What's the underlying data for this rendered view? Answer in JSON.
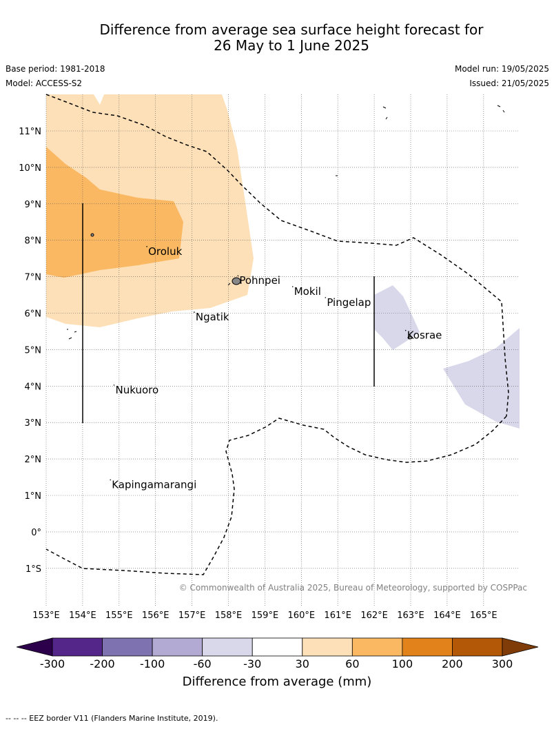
{
  "title_line1": "Difference from average sea surface height forecast for",
  "title_line2": "26 May to 1 June 2025",
  "base_period": "Base period: 1981-2018",
  "model": "Model: ACCESS-S2",
  "model_run": "Model run: 19/05/2025",
  "issued": "Issued: 21/05/2025",
  "copyright": "© Commonwealth of Australia 2025, Bureau of Meteorology, supported by COSPPac",
  "lat_labels": [
    "11°N",
    "10°N",
    "9°N",
    "8°N",
    "7°N",
    "6°N",
    "5°N",
    "4°N",
    "3°N",
    "2°N",
    "1°N",
    "0°",
    "1°S"
  ],
  "lon_labels": [
    "153°E",
    "154°E",
    "155°E",
    "156°E",
    "157°E",
    "158°E",
    "159°E",
    "160°E",
    "161°E",
    "162°E",
    "163°E",
    "164°E",
    "165°E"
  ],
  "places": [
    {
      "name": "Oroluk",
      "lon": 155.8,
      "lat": 7.6
    },
    {
      "name": "Pohnpei",
      "lon": 158.3,
      "lat": 6.8
    },
    {
      "name": "Mokil",
      "lon": 159.8,
      "lat": 6.5
    },
    {
      "name": "Pingelap",
      "lon": 160.7,
      "lat": 6.2
    },
    {
      "name": "Ngatik",
      "lon": 157.1,
      "lat": 5.8
    },
    {
      "name": "Kosrae",
      "lon": 162.9,
      "lat": 5.3
    },
    {
      "name": "Nukuoro",
      "lon": 154.9,
      "lat": 3.8
    },
    {
      "name": "Kapingamarangi",
      "lon": 154.8,
      "lat": 1.2
    }
  ],
  "colorbar": {
    "ticks": [
      "-300",
      "-200",
      "-100",
      "-60",
      "-30",
      "30",
      "60",
      "100",
      "200",
      "300"
    ],
    "colors": [
      "#55268a",
      "#7f72b0",
      "#b2aad2",
      "#d8d8ea",
      "#ffffff",
      "#fde0b7",
      "#fbb863",
      "#e1821a",
      "#b35806"
    ],
    "min_color": "#2d004b",
    "max_color": "#7f3b08",
    "label": "Difference from average (mm)"
  },
  "footer": "--  --  -- EEZ border V11 (Flanders Marine Institute, 2019)."
}
